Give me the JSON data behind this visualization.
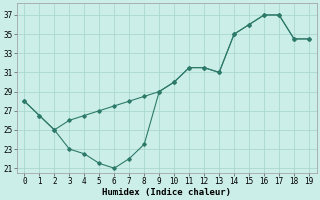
{
  "xlabel": "Humidex (Indice chaleur)",
  "background_color": "#cceee8",
  "line_color": "#2d7a6a",
  "grid_color": "#aad8d0",
  "xlim": [
    -0.5,
    19.5
  ],
  "ylim": [
    20.5,
    38.2
  ],
  "xticks": [
    0,
    1,
    2,
    3,
    4,
    5,
    6,
    7,
    8,
    9,
    10,
    11,
    12,
    13,
    14,
    15,
    16,
    17,
    18,
    19
  ],
  "yticks": [
    21,
    23,
    25,
    27,
    29,
    31,
    33,
    35,
    37
  ],
  "line1_x": [
    0,
    1,
    2,
    3,
    4,
    5,
    6,
    7,
    8,
    9,
    10,
    11,
    12,
    13,
    14,
    15,
    16,
    17,
    18,
    19
  ],
  "line1_y": [
    28,
    26.5,
    25,
    23,
    22.5,
    21.5,
    21,
    22,
    23.5,
    29,
    30,
    31.5,
    31.5,
    31,
    35,
    36,
    37,
    37,
    34.5,
    34.5
  ],
  "line2_x": [
    0,
    1,
    2,
    3,
    4,
    5,
    6,
    7,
    8,
    9,
    10,
    11,
    12,
    13,
    14,
    15,
    16,
    17,
    18,
    19
  ],
  "line2_y": [
    28,
    26.5,
    25,
    26,
    26.5,
    27,
    27.5,
    28,
    28.5,
    29,
    30,
    31.5,
    31.5,
    31,
    35,
    36,
    37,
    37,
    34.5,
    34.5
  ]
}
